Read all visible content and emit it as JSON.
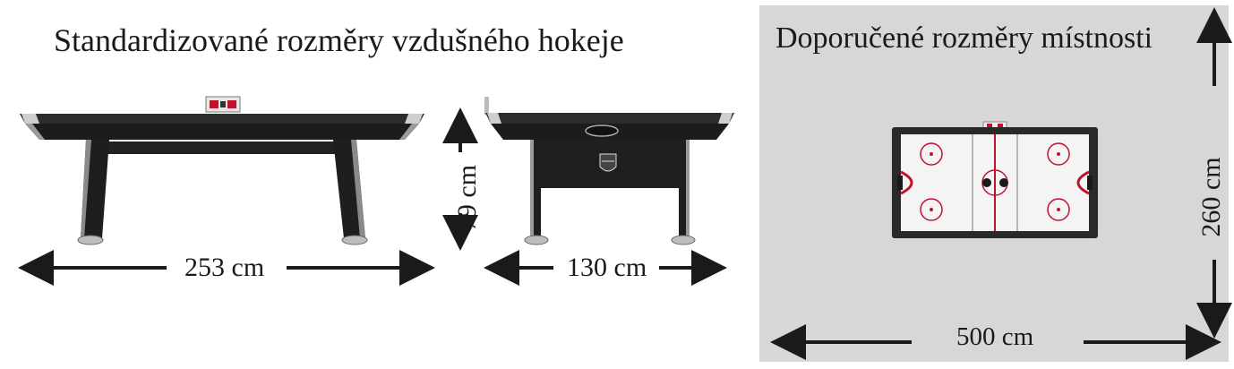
{
  "left_title": "Standardizované rozměry vzdušného hokeje",
  "right_title": "Doporučené rozměry místnosti",
  "dimensions": {
    "table_length": "253 cm",
    "table_width": "130 cm",
    "table_height": "79 cm",
    "room_length": "500 cm",
    "room_width": "260 cm"
  },
  "icons": [
    "air-hockey-table-side-view",
    "air-hockey-table-end-view",
    "air-hockey-table-top-view",
    "nhl-logo",
    "scoreboard"
  ],
  "colors": {
    "room_background": "#d7d7d7",
    "table_body": "#1f1f1f",
    "rink_markings": "#c0122c"
  }
}
